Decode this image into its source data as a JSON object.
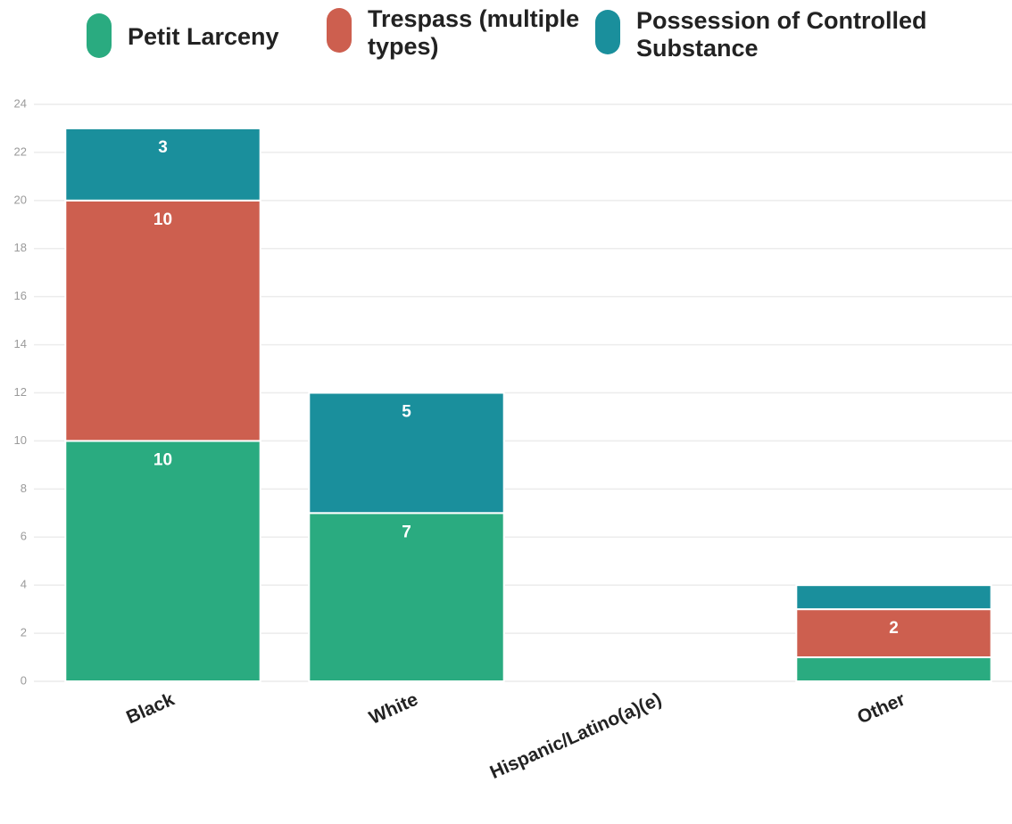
{
  "chart_data": {
    "type": "stacked_bar",
    "categories": [
      "Black",
      "White",
      "Hispanic/Latino(a)(e)",
      "Other"
    ],
    "series": [
      {
        "name": "Petit Larceny",
        "color": "#2aab80",
        "values": [
          10,
          7,
          0,
          1
        ],
        "value_labels": [
          "10",
          "7",
          null,
          null
        ]
      },
      {
        "name": "Trespass (multiple types)",
        "color": "#cd5f4f",
        "values": [
          10,
          0,
          0,
          2
        ],
        "value_labels": [
          "10",
          null,
          null,
          "2"
        ]
      },
      {
        "name": "Possession of Controlled Substance",
        "color": "#1a8f9c",
        "values": [
          3,
          5,
          0,
          1
        ],
        "value_labels": [
          "3",
          "5",
          null,
          null
        ]
      }
    ],
    "ylim": [
      0,
      24
    ],
    "yticks": [
      0,
      2,
      4,
      6,
      8,
      10,
      12,
      14,
      16,
      18,
      20,
      22,
      24
    ],
    "grid": true,
    "legend": "top"
  }
}
